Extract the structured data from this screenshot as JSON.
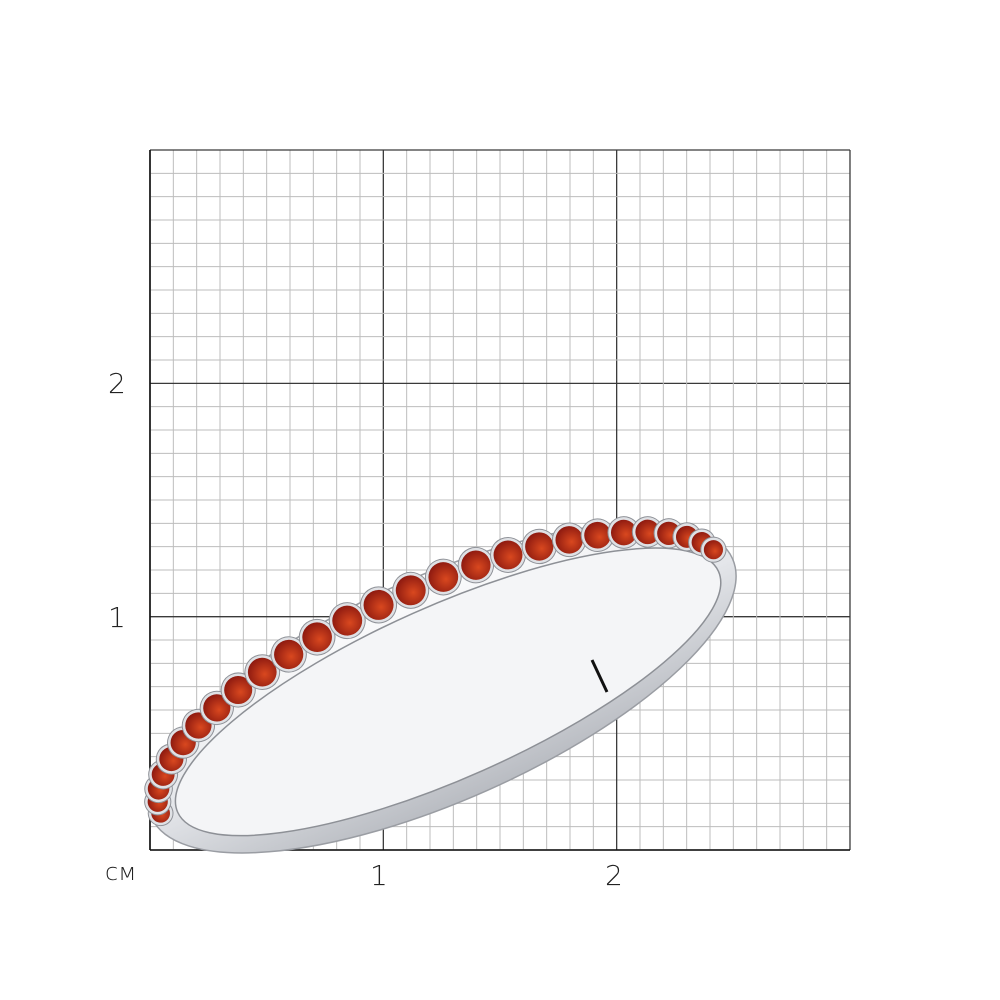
{
  "scale": {
    "unit": "см",
    "x_ticks": [
      "1",
      "2"
    ],
    "y_ticks": [
      "2",
      "1"
    ],
    "max_cm": 3,
    "minor_per_cm": 10
  },
  "colors": {
    "grid_minor": "#bdbdbd",
    "grid_major": "#3a3a3a",
    "metal": "#e4e6ea",
    "stone": "#8e1a10",
    "stone_highlight": "#d9481f"
  },
  "product": {
    "type": "ring",
    "stones": "garnet"
  }
}
